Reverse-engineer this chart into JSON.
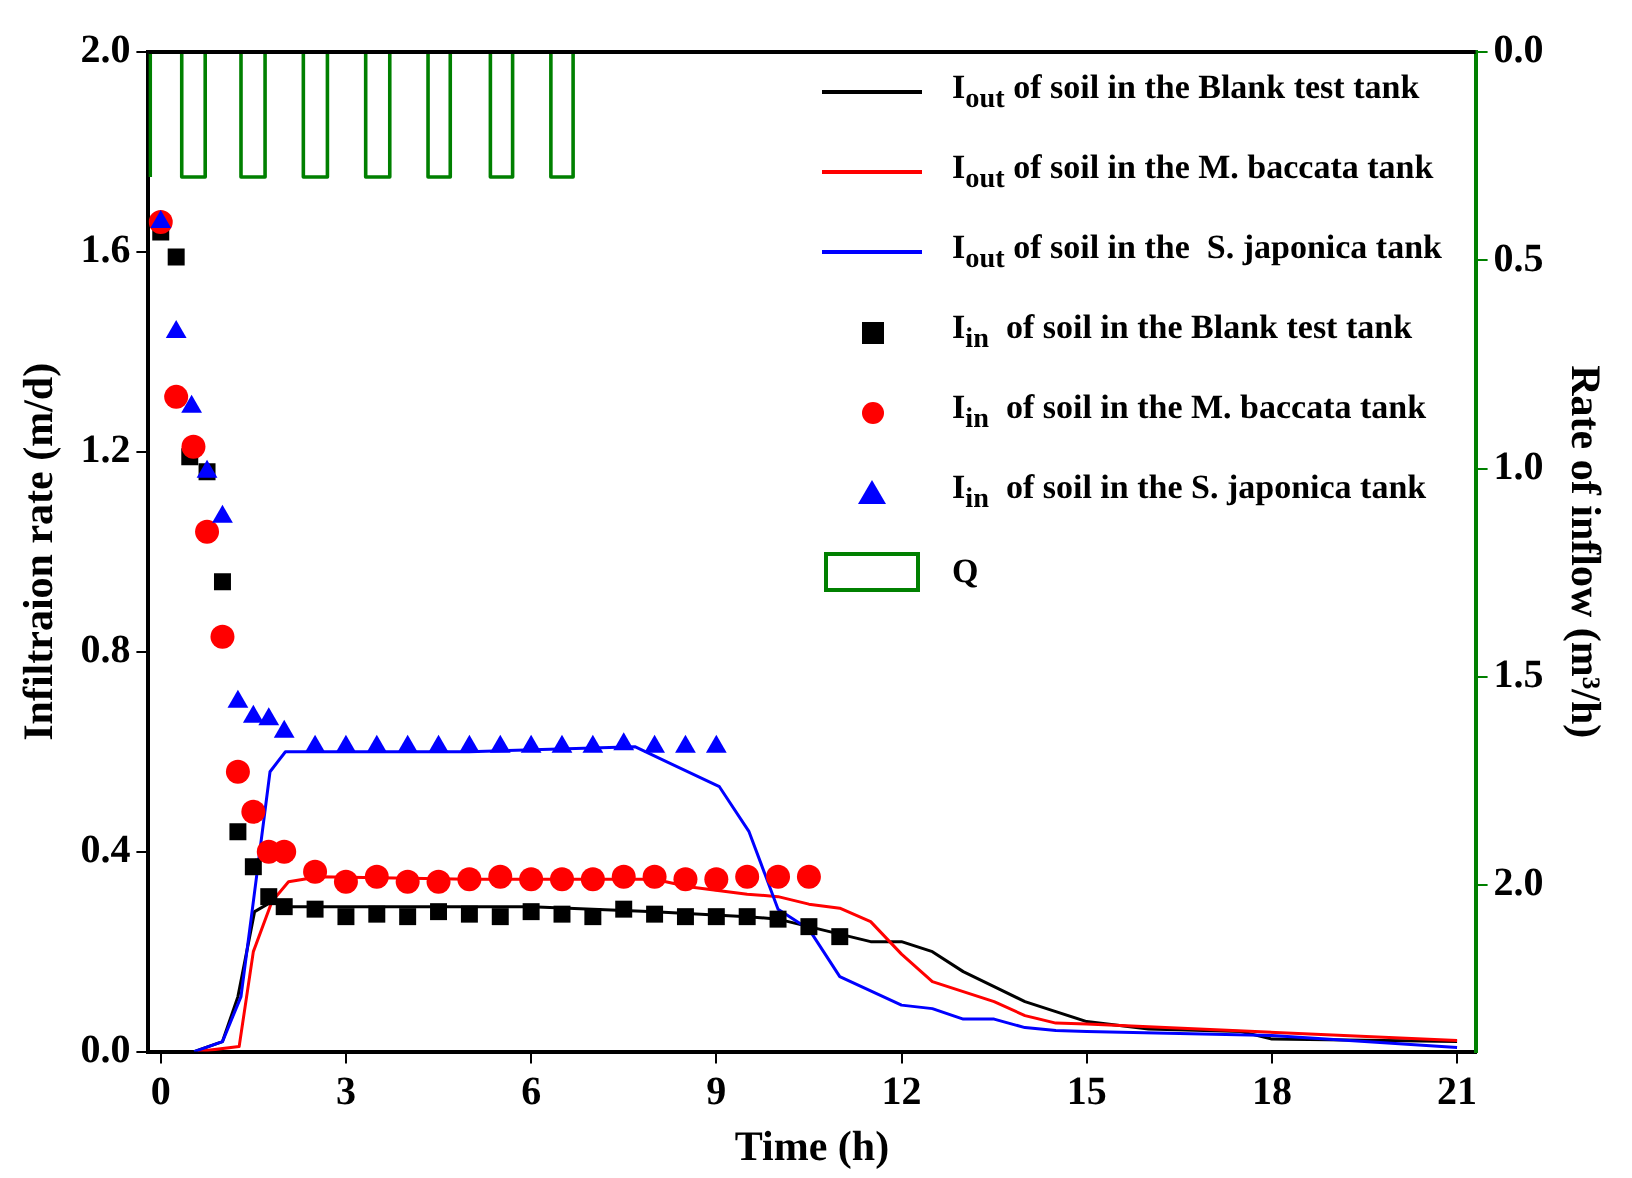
{
  "chart_data": {
    "type": "line",
    "xlabel": "Time (h)",
    "ylabel": "Infiltraion rate (m/d)",
    "y2label": "Rate of inflow (m³/h)",
    "xlim": [
      -0.2,
      21.3
    ],
    "xticks": [
      0,
      3,
      6,
      9,
      12,
      15,
      18,
      21
    ],
    "ylim": [
      0,
      2
    ],
    "yticks": [
      {
        "value": 0,
        "label": "0.0"
      },
      {
        "value": 0.4,
        "label": "0.4"
      },
      {
        "value": 0.8,
        "label": "0.8"
      },
      {
        "value": 1.2,
        "label": "1.2"
      },
      {
        "value": 1.6,
        "label": "1.6"
      },
      {
        "value": 2,
        "label": "2.0"
      }
    ],
    "y2lim": [
      2.4,
      0
    ],
    "y2ticks": [
      {
        "value": 0,
        "label": "0.0"
      },
      {
        "value": 0.5,
        "label": "0.5"
      },
      {
        "value": 1,
        "label": "1.0"
      },
      {
        "value": 1.5,
        "label": "1.5"
      },
      {
        "value": 2,
        "label": "2.0"
      }
    ],
    "legend": "top right",
    "series": [
      {
        "name": "I$_{out}$ of soil in the Blank test tank",
        "marker": "none",
        "color": "#000000",
        "x": [
          0.54,
          1.0,
          1.25,
          1.52,
          1.8,
          2.0,
          4,
          6,
          8,
          9.5,
          10,
          10.5,
          11,
          11.5,
          12,
          12.5,
          13,
          13.5,
          14,
          14.5,
          15,
          16,
          17.5,
          18,
          21
        ],
        "values": [
          0,
          0.02,
          0.11,
          0.28,
          0.3,
          0.29,
          0.29,
          0.29,
          0.28,
          0.27,
          0.265,
          0.25,
          0.235,
          0.22,
          0.22,
          0.2,
          0.16,
          0.13,
          0.1,
          0.08,
          0.06,
          0.045,
          0.04,
          0.025,
          0.02
        ]
      },
      {
        "name": "I$_{out}$ of soil in the M. baccata tank",
        "marker": "none",
        "color": "#ff0000",
        "x": [
          0.6,
          1.27,
          1.5,
          1.8,
          2.07,
          2.56,
          5,
          8,
          8.55,
          9.5,
          10,
          10.5,
          11,
          11.5,
          12,
          12.5,
          13.5,
          14,
          14.5,
          15,
          21
        ],
        "values": [
          0,
          0.01,
          0.2,
          0.3,
          0.34,
          0.35,
          0.345,
          0.345,
          0.33,
          0.315,
          0.31,
          0.295,
          0.287,
          0.26,
          0.195,
          0.14,
          0.1,
          0.072,
          0.057,
          0.055,
          0.022
        ]
      },
      {
        "name": "I$_{out}$ of soil in the  S. japonica tank",
        "marker": "none",
        "color": "#0000ff",
        "x": [
          0.54,
          1.0,
          1.3,
          1.5,
          1.77,
          2.02,
          5,
          7.68,
          9.05,
          9.53,
          10.0,
          10.5,
          11,
          12,
          12.5,
          13,
          13.5,
          14,
          14.5,
          15,
          18,
          21
        ],
        "values": [
          0,
          0.02,
          0.11,
          0.3,
          0.56,
          0.6,
          0.6,
          0.61,
          0.53,
          0.44,
          0.285,
          0.245,
          0.15,
          0.093,
          0.086,
          0.065,
          0.065,
          0.048,
          0.042,
          0.04,
          0.032,
          0.008
        ]
      },
      {
        "name": "I$_{in}$  of soil in the Blank test tank",
        "type": "scatter",
        "marker": "square",
        "color": "#000000",
        "x": [
          0,
          0.25,
          0.47,
          0.75,
          1,
          1.25,
          1.5,
          1.75,
          2,
          2.5,
          3,
          3.5,
          4,
          4.5,
          5,
          5.5,
          6,
          6.5,
          7,
          7.5,
          8,
          8.5,
          9,
          9.5,
          10,
          10.5,
          11
        ],
        "values": [
          1.64,
          1.59,
          1.19,
          1.16,
          0.94,
          0.44,
          0.37,
          0.31,
          0.29,
          0.285,
          0.27,
          0.275,
          0.27,
          0.28,
          0.275,
          0.27,
          0.28,
          0.275,
          0.27,
          0.285,
          0.275,
          0.27,
          0.27,
          0.27,
          0.265,
          0.25,
          0.23
        ]
      },
      {
        "name": "I$_{in}$  of soil in the M. baccata tank",
        "type": "scatter",
        "marker": "circle",
        "color": "#ff0000",
        "x": [
          0,
          0.25,
          0.53,
          0.75,
          1,
          1.25,
          1.5,
          1.75,
          2,
          2.5,
          3,
          3.5,
          4,
          4.5,
          5,
          5.5,
          6,
          6.5,
          7,
          7.5,
          8,
          8.5,
          9,
          9.5,
          10,
          10.5
        ],
        "values": [
          1.66,
          1.31,
          1.21,
          1.04,
          0.83,
          0.56,
          0.48,
          0.4,
          0.4,
          0.36,
          0.34,
          0.35,
          0.34,
          0.34,
          0.345,
          0.35,
          0.345,
          0.345,
          0.345,
          0.35,
          0.35,
          0.345,
          0.345,
          0.35,
          0.35,
          0.35
        ]
      },
      {
        "name": "I$_{in}$  of soil in the S. japonica tank",
        "type": "scatter",
        "marker": "triangle",
        "color": "#0000ff",
        "x": [
          0,
          0.25,
          0.5,
          0.75,
          1,
          1.25,
          1.5,
          1.75,
          2,
          2.5,
          3,
          3.5,
          4,
          4.5,
          5,
          5.5,
          6,
          6.5,
          7,
          7.5,
          8,
          8.5,
          9
        ],
        "values": [
          1.66,
          1.44,
          1.29,
          1.16,
          1.07,
          0.7,
          0.67,
          0.665,
          0.64,
          0.61,
          0.61,
          0.61,
          0.61,
          0.61,
          0.61,
          0.61,
          0.61,
          0.61,
          0.61,
          0.615,
          0.61,
          0.61,
          0.61
        ]
      },
      {
        "name": "Q",
        "type": "step",
        "axis": "y2",
        "marker": "none",
        "color": "#008000",
        "x": [
          -0.17,
          0.34,
          0.72,
          1.3,
          1.69,
          2.31,
          2.7,
          3.32,
          3.71,
          4.33,
          4.69,
          5.34,
          5.7,
          6.32,
          6.68,
          7.33
        ],
        "values": [
          0.3,
          0,
          0.3,
          0,
          0.3,
          0,
          0.3,
          0,
          0.3,
          0,
          0.3,
          0,
          0.3,
          0,
          0.3,
          0
        ]
      }
    ]
  }
}
